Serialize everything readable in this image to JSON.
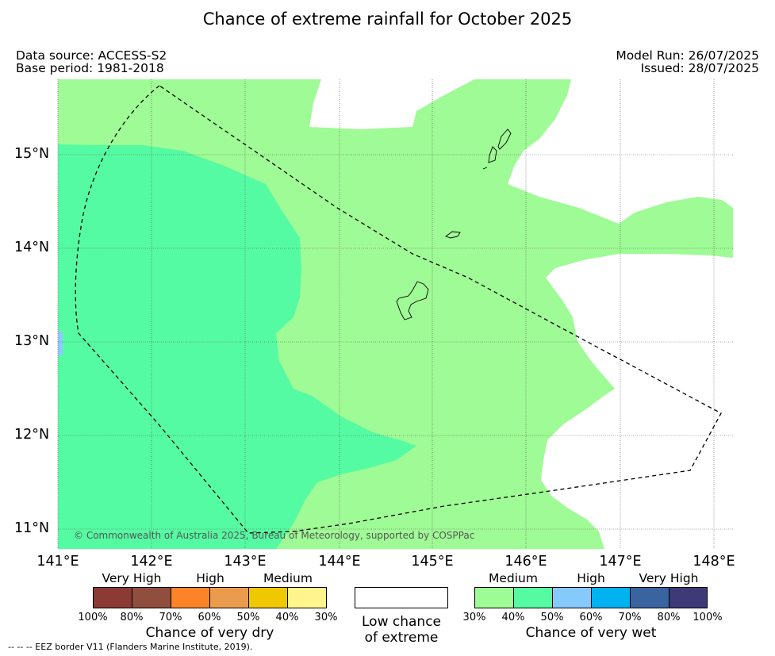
{
  "title": "Chance of extreme rainfall for October 2025",
  "meta": {
    "data_source": "Data source: ACCESS-S2",
    "base_period": "Base period: 1981-2018",
    "model_run": "Model Run: 26/07/2025",
    "issued": "Issued: 28/07/2025"
  },
  "map": {
    "lat_labels": [
      "15°N",
      "14°N",
      "13°N",
      "12°N",
      "11°N"
    ],
    "lon_labels": [
      "141°E",
      "142°E",
      "143°E",
      "144°E",
      "145°E",
      "146°E",
      "147°E",
      "148°E"
    ],
    "copyright": "© Commonwealth of Australia 2025, Bureau of Meteorology, supported by COSPPac",
    "colors": {
      "medium_wet": "#9ffb95",
      "high_wet": "#55fba2",
      "very_high_wet_tint": "#8ec8ff",
      "low": "#ffffff"
    }
  },
  "legend": {
    "dry": {
      "categories": [
        "Very High",
        "High",
        "Medium"
      ],
      "ticks": [
        "100%",
        "80%",
        "70%",
        "60%",
        "50%",
        "40%",
        "30%"
      ],
      "colors": [
        "#8b3a34",
        "#8f4e3e",
        "#fb8428",
        "#ea9b4c",
        "#f0c800",
        "#fff58c"
      ],
      "title": "Chance of very dry"
    },
    "neutral": {
      "title_line1": "Low chance",
      "title_line2": "of extreme",
      "color": "#ffffff"
    },
    "wet": {
      "categories": [
        "Medium",
        "High",
        "Very High"
      ],
      "ticks": [
        "30%",
        "40%",
        "50%",
        "60%",
        "70%",
        "80%",
        "100%"
      ],
      "colors": [
        "#9ffb95",
        "#55fba2",
        "#86c9fb",
        "#00b2f0",
        "#39649f",
        "#3e3a78"
      ],
      "title": "Chance of very wet"
    }
  },
  "footnote": "--  --  -- EEZ border V11 (Flanders Marine Institute, 2019)."
}
